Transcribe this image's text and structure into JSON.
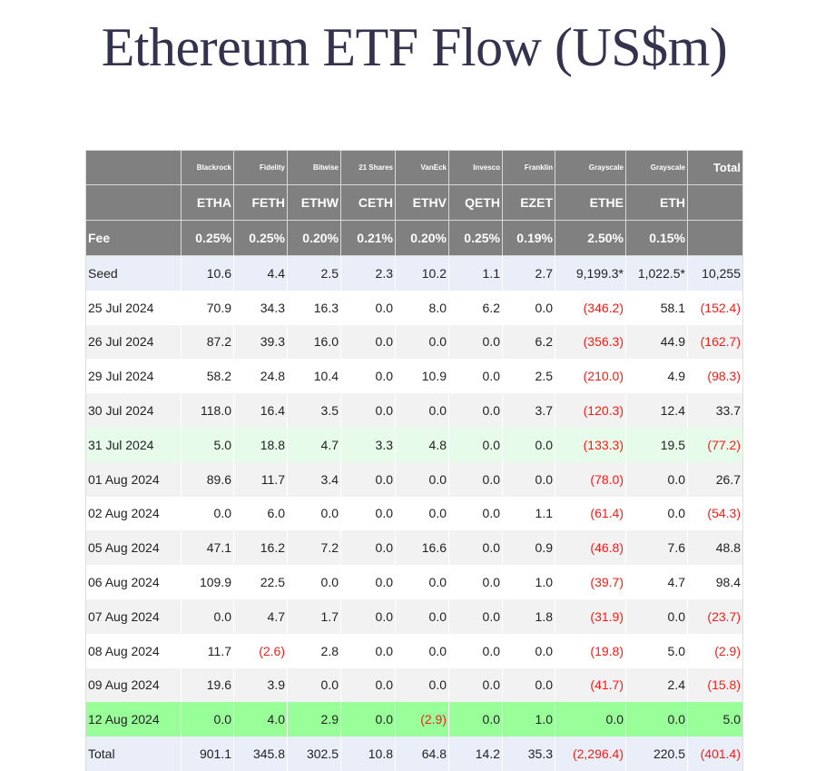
{
  "title": "Ethereum ETF Flow (US$m)",
  "colors": {
    "header_bg": "#808080",
    "negative": "#ff1a1a",
    "highlight_row": "#99ff99",
    "light_highlight_row": "#e6fbea",
    "seed_total_row": "#e9eef8"
  },
  "table": {
    "issuers": [
      "Blackrock",
      "Fidelity",
      "Bitwise",
      "21 Shares",
      "VanEck",
      "Invesco",
      "Franklin",
      "Grayscale",
      "Grayscale"
    ],
    "total_label": "Total",
    "tickers": [
      "ETHA",
      "FETH",
      "ETHW",
      "CETH",
      "ETHV",
      "QETH",
      "EZET",
      "ETHE",
      "ETH"
    ],
    "fee_label": "Fee",
    "fees": [
      "0.25%",
      "0.25%",
      "0.20%",
      "0.21%",
      "0.20%",
      "0.25%",
      "0.19%",
      "2.50%",
      "0.15%"
    ],
    "rows": [
      {
        "label": "Seed",
        "style": "seed",
        "values": [
          "10.6",
          "4.4",
          "2.5",
          "2.3",
          "10.2",
          "1.1",
          "2.7",
          "9,199.3*",
          "1,022.5*",
          "10,255"
        ]
      },
      {
        "label": "25 Jul 2024",
        "style": "even",
        "values": [
          "70.9",
          "34.3",
          "16.3",
          "0.0",
          "8.0",
          "6.2",
          "0.0",
          "(346.2)",
          "58.1",
          "(152.4)"
        ]
      },
      {
        "label": "26 Jul 2024",
        "style": "odd",
        "values": [
          "87.2",
          "39.3",
          "16.0",
          "0.0",
          "0.0",
          "0.0",
          "6.2",
          "(356.3)",
          "44.9",
          "(162.7)"
        ]
      },
      {
        "label": "29 Jul 2024",
        "style": "even",
        "values": [
          "58.2",
          "24.8",
          "10.4",
          "0.0",
          "10.9",
          "0.0",
          "2.5",
          "(210.0)",
          "4.9",
          "(98.3)"
        ]
      },
      {
        "label": "30 Jul 2024",
        "style": "odd",
        "values": [
          "118.0",
          "16.4",
          "3.5",
          "0.0",
          "0.0",
          "0.0",
          "3.7",
          "(120.3)",
          "12.4",
          "33.7"
        ]
      },
      {
        "label": "31 Jul 2024",
        "style": "lightgreen",
        "values": [
          "5.0",
          "18.8",
          "4.7",
          "3.3",
          "4.8",
          "0.0",
          "0.0",
          "(133.3)",
          "19.5",
          "(77.2)"
        ]
      },
      {
        "label": "01 Aug 2024",
        "style": "odd",
        "values": [
          "89.6",
          "11.7",
          "3.4",
          "0.0",
          "0.0",
          "0.0",
          "0.0",
          "(78.0)",
          "0.0",
          "26.7"
        ]
      },
      {
        "label": "02 Aug 2024",
        "style": "even",
        "values": [
          "0.0",
          "6.0",
          "0.0",
          "0.0",
          "0.0",
          "0.0",
          "1.1",
          "(61.4)",
          "0.0",
          "(54.3)"
        ]
      },
      {
        "label": "05 Aug 2024",
        "style": "odd",
        "values": [
          "47.1",
          "16.2",
          "7.2",
          "0.0",
          "16.6",
          "0.0",
          "0.9",
          "(46.8)",
          "7.6",
          "48.8"
        ]
      },
      {
        "label": "06 Aug 2024",
        "style": "even",
        "values": [
          "109.9",
          "22.5",
          "0.0",
          "0.0",
          "0.0",
          "0.0",
          "1.0",
          "(39.7)",
          "4.7",
          "98.4"
        ]
      },
      {
        "label": "07 Aug 2024",
        "style": "odd",
        "values": [
          "0.0",
          "4.7",
          "1.7",
          "0.0",
          "0.0",
          "0.0",
          "1.8",
          "(31.9)",
          "0.0",
          "(23.7)"
        ]
      },
      {
        "label": "08 Aug 2024",
        "style": "even",
        "values": [
          "11.7",
          "(2.6)",
          "2.8",
          "0.0",
          "0.0",
          "0.0",
          "0.0",
          "(19.8)",
          "5.0",
          "(2.9)"
        ]
      },
      {
        "label": "09 Aug 2024",
        "style": "odd",
        "values": [
          "19.6",
          "3.9",
          "0.0",
          "0.0",
          "0.0",
          "0.0",
          "0.0",
          "(41.7)",
          "2.4",
          "(15.8)"
        ]
      },
      {
        "label": "12 Aug 2024",
        "style": "green",
        "values": [
          "0.0",
          "4.0",
          "2.9",
          "0.0",
          "(2.9)",
          "0.0",
          "1.0",
          "0.0",
          "0.0",
          "5.0"
        ]
      },
      {
        "label": "Total",
        "style": "total",
        "values": [
          "901.1",
          "345.8",
          "302.5",
          "10.8",
          "64.8",
          "14.2",
          "35.3",
          "(2,296.4)",
          "220.5",
          "(401.4)"
        ]
      }
    ]
  }
}
